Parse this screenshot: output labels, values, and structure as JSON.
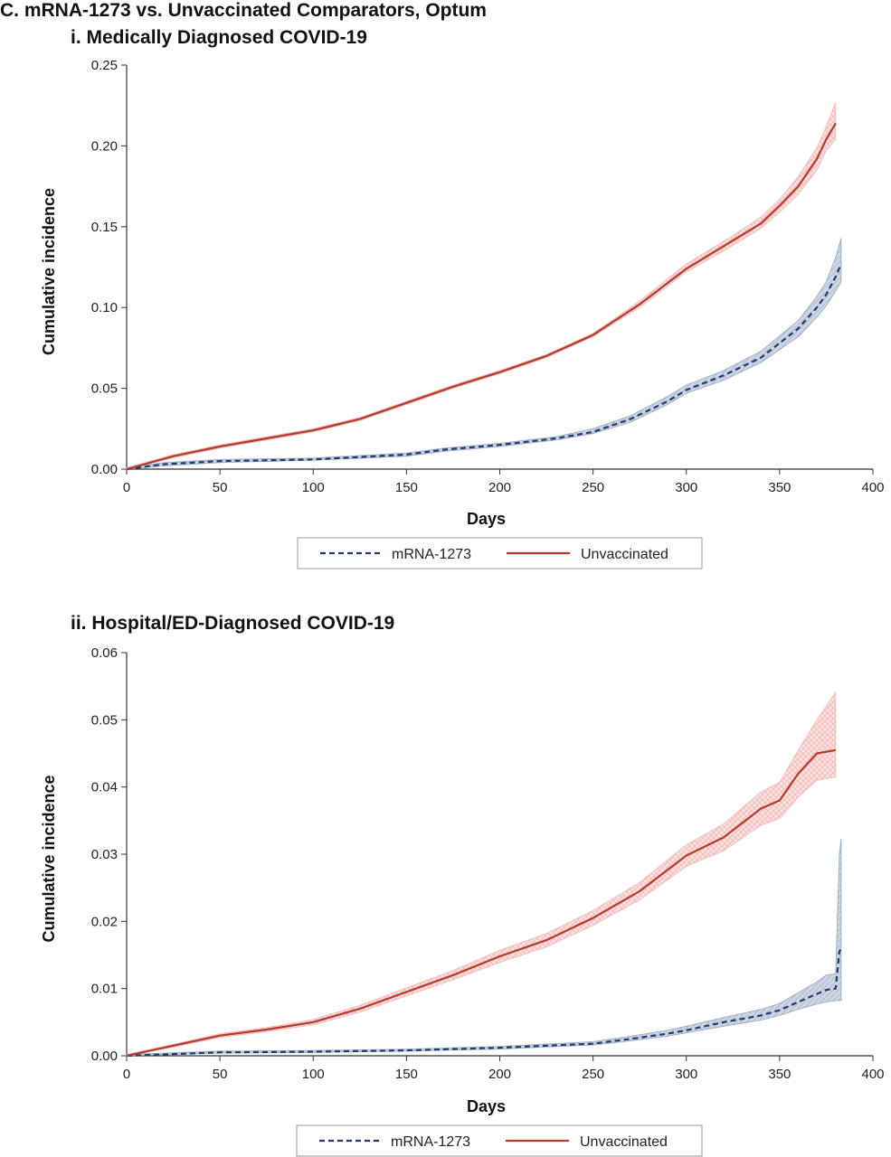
{
  "figure_title": "C. mRNA-1273 vs. Unvaccinated Comparators, Optum",
  "colors": {
    "mrna_line": "#1f3a6b",
    "mrna_band": "#b9c6d8",
    "unvax_line": "#b23a2e",
    "unvax_band": "#f2b8b5"
  },
  "chart_data": [
    {
      "type": "line",
      "title": "i. Medically Diagnosed COVID-19",
      "xlabel": "Days",
      "ylabel": "Cumulative incidence",
      "xlim": [
        0,
        400
      ],
      "ylim": [
        0,
        0.25
      ],
      "x_ticks": [
        "0",
        "50",
        "100",
        "150",
        "200",
        "250",
        "300",
        "350",
        "400"
      ],
      "y_ticks": [
        "0.00",
        "0.05",
        "0.10",
        "0.15",
        "0.20",
        "0.25"
      ],
      "legend": [
        "mRNA-1273",
        "Unvaccinated"
      ],
      "legend_position": "bottom",
      "series": [
        {
          "name": "mRNA-1273",
          "style": "dashed",
          "x": [
            0,
            20,
            50,
            100,
            150,
            170,
            200,
            230,
            250,
            270,
            290,
            300,
            320,
            340,
            360,
            370,
            375,
            380,
            383
          ],
          "y": [
            0.0,
            0.003,
            0.005,
            0.006,
            0.009,
            0.012,
            0.015,
            0.019,
            0.023,
            0.031,
            0.042,
            0.049,
            0.058,
            0.069,
            0.087,
            0.1,
            0.108,
            0.119,
            0.127
          ],
          "ci_lower": [
            0.0,
            0.002,
            0.004,
            0.0055,
            0.008,
            0.011,
            0.014,
            0.018,
            0.022,
            0.029,
            0.04,
            0.047,
            0.055,
            0.066,
            0.082,
            0.094,
            0.101,
            0.11,
            0.116
          ],
          "ci_upper": [
            0.001,
            0.004,
            0.006,
            0.0068,
            0.01,
            0.013,
            0.016,
            0.02,
            0.025,
            0.033,
            0.045,
            0.052,
            0.061,
            0.073,
            0.092,
            0.107,
            0.116,
            0.131,
            0.143
          ]
        },
        {
          "name": "Unvaccinated",
          "style": "solid",
          "x": [
            0,
            25,
            50,
            75,
            100,
            125,
            150,
            175,
            200,
            225,
            250,
            275,
            300,
            320,
            340,
            350,
            360,
            370,
            375,
            380
          ],
          "y": [
            0.0,
            0.008,
            0.014,
            0.019,
            0.024,
            0.031,
            0.041,
            0.051,
            0.06,
            0.07,
            0.083,
            0.102,
            0.124,
            0.138,
            0.152,
            0.163,
            0.175,
            0.192,
            0.204,
            0.214
          ],
          "ci_lower": [
            0.0,
            0.007,
            0.013,
            0.018,
            0.023,
            0.03,
            0.04,
            0.05,
            0.059,
            0.069,
            0.082,
            0.1,
            0.122,
            0.135,
            0.149,
            0.159,
            0.17,
            0.185,
            0.197,
            0.204
          ],
          "ci_upper": [
            0.001,
            0.009,
            0.015,
            0.02,
            0.025,
            0.032,
            0.042,
            0.052,
            0.061,
            0.071,
            0.084,
            0.104,
            0.127,
            0.141,
            0.156,
            0.167,
            0.181,
            0.199,
            0.212,
            0.227
          ]
        }
      ]
    },
    {
      "type": "line",
      "title": "ii. Hospital/ED-Diagnosed COVID-19",
      "xlabel": "Days",
      "ylabel": "Cumulative incidence",
      "xlim": [
        0,
        400
      ],
      "ylim": [
        0,
        0.06
      ],
      "x_ticks": [
        "0",
        "50",
        "100",
        "150",
        "200",
        "250",
        "300",
        "350",
        "400"
      ],
      "y_ticks": [
        "0.00",
        "0.01",
        "0.02",
        "0.03",
        "0.04",
        "0.05",
        "0.06"
      ],
      "legend": [
        "mRNA-1273",
        "Unvaccinated"
      ],
      "legend_position": "bottom",
      "series": [
        {
          "name": "mRNA-1273",
          "style": "dashed",
          "x": [
            0,
            50,
            100,
            150,
            200,
            250,
            270,
            290,
            300,
            320,
            340,
            350,
            360,
            370,
            375,
            380,
            382,
            383
          ],
          "y": [
            0.0,
            0.0005,
            0.0006,
            0.0008,
            0.0012,
            0.0018,
            0.0025,
            0.0033,
            0.0038,
            0.005,
            0.006,
            0.0068,
            0.008,
            0.0092,
            0.0098,
            0.01,
            0.0155,
            0.016
          ],
          "ci_lower": [
            0.0,
            0.0004,
            0.0005,
            0.0007,
            0.001,
            0.0016,
            0.0022,
            0.0029,
            0.0034,
            0.0044,
            0.0053,
            0.006,
            0.0069,
            0.0077,
            0.008,
            0.0082,
            0.0082,
            0.0082
          ],
          "ci_upper": [
            0.0002,
            0.0007,
            0.0008,
            0.001,
            0.0014,
            0.0021,
            0.0029,
            0.0038,
            0.0044,
            0.0057,
            0.0069,
            0.0078,
            0.0094,
            0.011,
            0.012,
            0.0122,
            0.03,
            0.0323
          ]
        },
        {
          "name": "Unvaccinated",
          "style": "solid",
          "x": [
            0,
            25,
            50,
            75,
            100,
            125,
            150,
            175,
            200,
            225,
            250,
            275,
            300,
            320,
            340,
            350,
            360,
            370,
            380
          ],
          "y": [
            0.0,
            0.0015,
            0.003,
            0.0039,
            0.005,
            0.007,
            0.0095,
            0.012,
            0.0148,
            0.0172,
            0.0205,
            0.0245,
            0.0298,
            0.0325,
            0.0368,
            0.038,
            0.042,
            0.045,
            0.0455
          ],
          "ci_lower": [
            0.0,
            0.0013,
            0.0027,
            0.0036,
            0.0046,
            0.0065,
            0.0089,
            0.0113,
            0.0139,
            0.0162,
            0.0194,
            0.0232,
            0.0282,
            0.0305,
            0.0343,
            0.0353,
            0.0385,
            0.041,
            0.0415
          ],
          "ci_upper": [
            0.0002,
            0.0017,
            0.0033,
            0.0042,
            0.0054,
            0.0075,
            0.0101,
            0.0127,
            0.0157,
            0.0182,
            0.0216,
            0.0258,
            0.0314,
            0.0345,
            0.0393,
            0.0407,
            0.0455,
            0.05,
            0.0541
          ]
        }
      ]
    }
  ]
}
